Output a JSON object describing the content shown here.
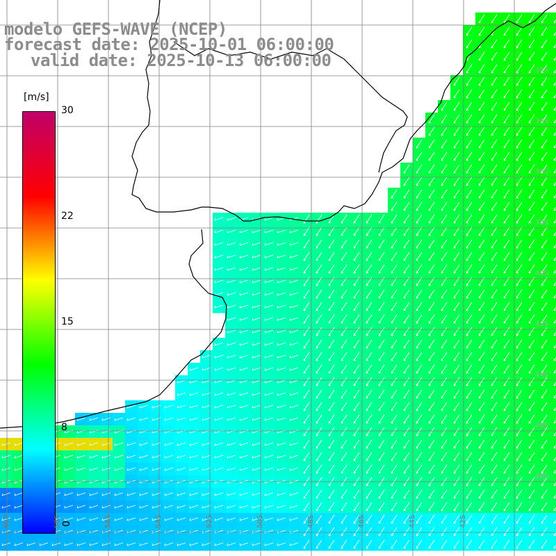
{
  "title": {
    "model": "modelo GEFS-WAVE (NCEP)",
    "forecast": "forecast date: 2025-10-01 06:00:00",
    "valid": "valid date: 2025-10-13 06:00:00"
  },
  "colorbar": {
    "unit": "[m/s]",
    "ticks": [
      "30",
      "22",
      "15",
      "8",
      "0"
    ],
    "tick_values": [
      30,
      22,
      15,
      8,
      0
    ],
    "colors": [
      "#0000ff",
      "#00ffff",
      "#00ff00",
      "#ffff00",
      "#ff0000",
      "#c0006a"
    ]
  },
  "colors": {
    "coast": "#000000",
    "grid": "#808080",
    "arrows": "#ffffff",
    "title": "#8c8c8c"
  },
  "grid": {
    "bottom_labels": [
      "60S",
      "58S",
      "56S",
      "54S",
      "52S",
      "50S",
      "48S",
      "46S",
      "44S",
      "42S"
    ],
    "right_labels": [
      "32S",
      "34S",
      "36S",
      "38S",
      "40S",
      "42S",
      "44S",
      "46S",
      "48S"
    ]
  }
}
